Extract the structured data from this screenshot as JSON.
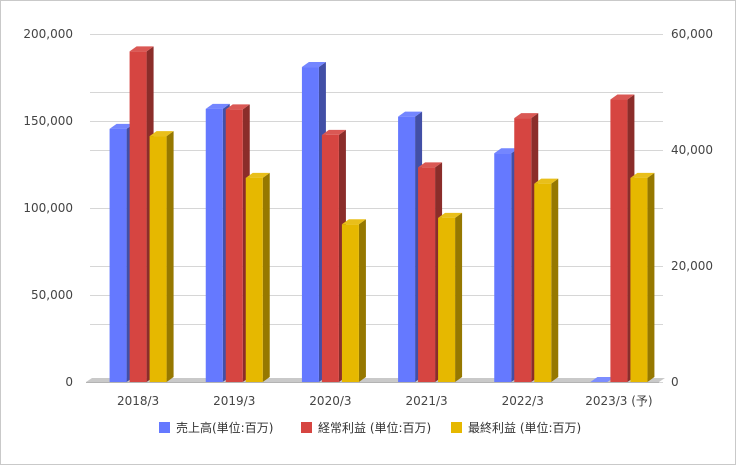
{
  "chart_data": {
    "type": "bar",
    "categories": [
      "2018/3",
      "2019/3",
      "2020/3",
      "2021/3",
      "2022/3",
      "2023/3 (予)"
    ],
    "left_axis": {
      "ticks": [
        "0",
        "50,000",
        "100,000",
        "150,000",
        "200,000"
      ],
      "range": [
        0,
        200000
      ]
    },
    "right_axis": {
      "ticks": [
        "0",
        "20,000",
        "40,000",
        "60,000"
      ],
      "range": [
        0,
        60000
      ]
    },
    "grid": true,
    "legend_position": "bottom",
    "series": [
      {
        "name": "売上高(単位:百万)",
        "axis": "left",
        "color": "#6579ff",
        "values": [
          145500,
          157000,
          181000,
          152500,
          131500,
          0
        ]
      },
      {
        "name": "経常利益 (単位:百万)",
        "axis": "right",
        "color": "#d64541",
        "values": [
          57000,
          47000,
          42600,
          37000,
          45500,
          48700
        ]
      },
      {
        "name": "最終利益 (単位:百万)",
        "axis": "right",
        "color": "#e6b800",
        "values": [
          42400,
          35200,
          27200,
          28300,
          34200,
          35200
        ]
      }
    ]
  }
}
